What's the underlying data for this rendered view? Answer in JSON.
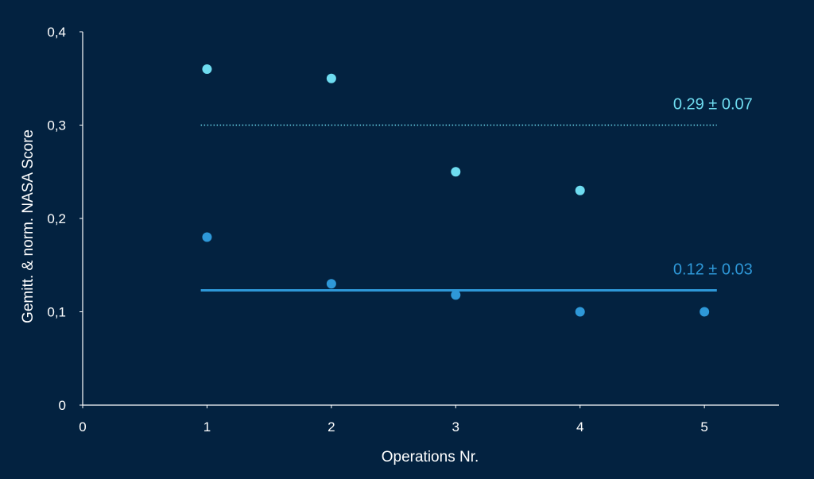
{
  "colors": {
    "background": "#032240",
    "axis": "#ffffff",
    "series_light": "#6EDCF0",
    "series_dark": "#2E98D8"
  },
  "chart_data": {
    "type": "scatter",
    "title": "",
    "xlabel": "Operations Nr.",
    "ylabel": "Gemitt. & norm. NASA Score",
    "xlim": [
      0,
      5.6
    ],
    "ylim": [
      0,
      0.4
    ],
    "x_ticks": [
      0,
      1,
      2,
      3,
      4,
      5
    ],
    "x_tick_labels": [
      "0",
      "1",
      "2",
      "3",
      "4",
      "5"
    ],
    "y_ticks": [
      0,
      0.1,
      0.2,
      0.3,
      0.4
    ],
    "y_tick_labels": [
      "0",
      "0,1",
      "0,2",
      "0,3",
      "0,4"
    ],
    "grid": false,
    "series": [
      {
        "color": "#6EDCF0",
        "x": [
          1,
          2,
          3,
          4
        ],
        "y": [
          0.36,
          0.35,
          0.25,
          0.23
        ],
        "mean_line": {
          "y": 0.3,
          "x_range": [
            0.95,
            5.1
          ],
          "style": "dotted"
        },
        "annotation": "0.29 ± 0.07"
      },
      {
        "color": "#2E98D8",
        "x": [
          1,
          2,
          3,
          4,
          5
        ],
        "y": [
          0.18,
          0.13,
          0.118,
          0.1,
          0.1
        ],
        "mean_line": {
          "y": 0.123,
          "x_range": [
            0.95,
            5.1
          ],
          "style": "solid"
        },
        "annotation": "0.12 ± 0.03"
      }
    ]
  }
}
